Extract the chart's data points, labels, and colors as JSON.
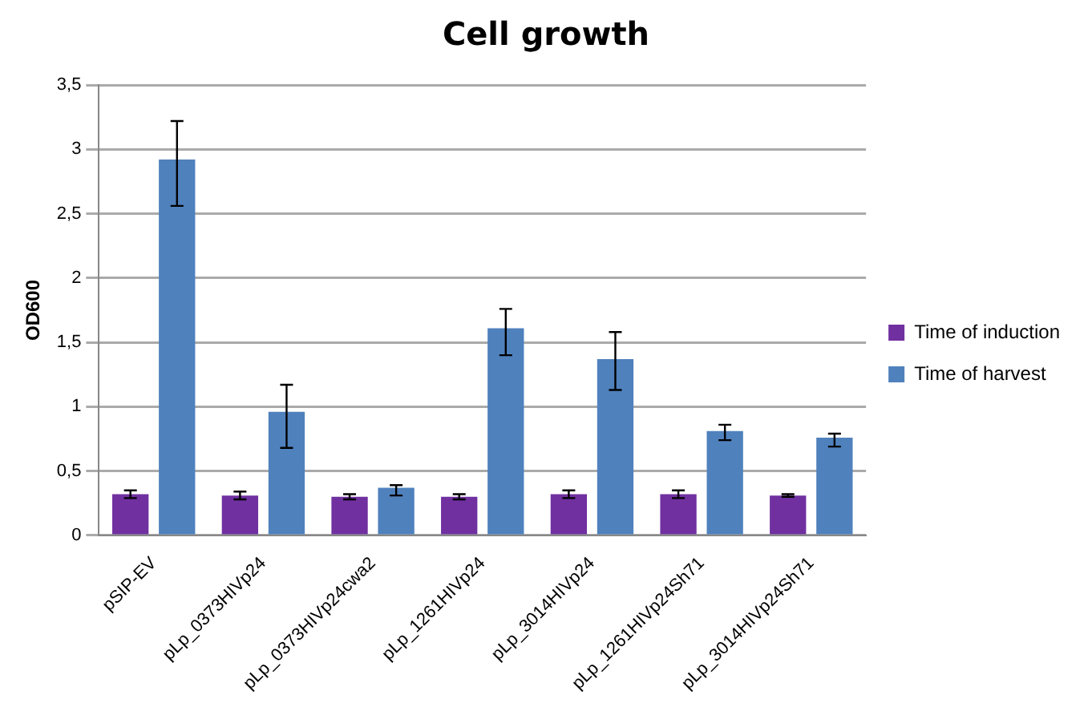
{
  "chart_data": {
    "type": "bar",
    "title": "Cell growth",
    "ylabel": "OD600",
    "categories": [
      "pSIP-EV",
      "pLp_0373HIVp24",
      "pLp_0373HIVp24cwa2",
      "pLp_1261HIVp24",
      "pLp_3014HIVp24",
      "pLp_1261HIVp24Sh71",
      "pLp_3014HIVp24Sh71"
    ],
    "series": [
      {
        "name": "Time of induction",
        "color": "#7030a0",
        "values": [
          0.32,
          0.31,
          0.3,
          0.3,
          0.32,
          0.32,
          0.31
        ],
        "errors": [
          0.03,
          0.03,
          0.02,
          0.02,
          0.03,
          0.03,
          0.01
        ]
      },
      {
        "name": "Time of harvest",
        "color": "#4f81bd",
        "values": [
          2.92,
          0.96,
          0.37,
          1.61,
          1.37,
          0.81,
          0.76
        ],
        "errors": [
          [
            2.56,
            3.22
          ],
          [
            0.68,
            1.17
          ],
          [
            0.31,
            0.39
          ],
          [
            1.4,
            1.76
          ],
          [
            1.13,
            1.58
          ],
          [
            0.74,
            0.86
          ],
          [
            0.69,
            0.79
          ]
        ]
      }
    ],
    "ylim": [
      0,
      3.5
    ],
    "yticks": [
      0,
      {
        "value": 0.5,
        "label": "0,5"
      },
      1,
      {
        "value": 1.5,
        "label": "1,5"
      },
      2,
      {
        "value": 2.5,
        "label": "2,5"
      },
      3,
      {
        "value": 3.5,
        "label": "3,5"
      }
    ],
    "grid": "y",
    "legend": "right"
  }
}
